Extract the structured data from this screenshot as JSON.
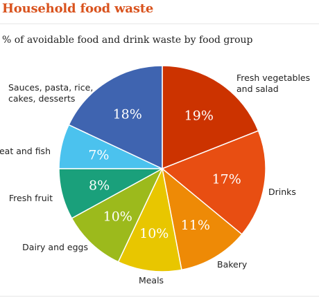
{
  "title": "Household food waste",
  "subtitle": "% of avoidable food and drink waste by food  group",
  "chart_data": {
    "type": "pie",
    "start_angle_deg": 0,
    "direction": "clockwise",
    "slices": [
      {
        "label": "Fresh vegetables and salad",
        "label_lines": [
          "Fresh vegetables",
          "and salad"
        ],
        "value": 19,
        "display": "19%",
        "color": "#cc3300"
      },
      {
        "label": "Drinks",
        "label_lines": [
          "Drinks"
        ],
        "value": 17,
        "display": "17%",
        "color": "#e84e12"
      },
      {
        "label": "Bakery",
        "label_lines": [
          "Bakery"
        ],
        "value": 11,
        "display": "11%",
        "color": "#ee8a06"
      },
      {
        "label": "Meals",
        "label_lines": [
          "Meals"
        ],
        "value": 10,
        "display": "10%",
        "color": "#e8c600"
      },
      {
        "label": "Dairy and eggs",
        "label_lines": [
          "Dairy and eggs"
        ],
        "value": 10,
        "display": "10%",
        "color": "#9cba1c"
      },
      {
        "label": "Fresh fruit",
        "label_lines": [
          "Fresh fruit"
        ],
        "value": 8,
        "display": "8%",
        "color": "#1aa07b"
      },
      {
        "label": "Meat and fish",
        "label_lines": [
          "Meat and fish"
        ],
        "value": 7,
        "display": "7%",
        "color": "#4bc2ee"
      },
      {
        "label": "Sauces, pasta, rice, cakes, desserts",
        "label_lines": [
          "Sauces, pasta, rice,",
          "cakes, desserts"
        ],
        "value": 18,
        "display": "18%",
        "color": "#3f64b0"
      }
    ]
  }
}
